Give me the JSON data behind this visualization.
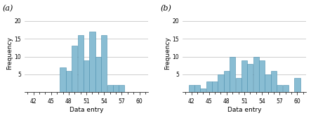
{
  "title_a": "(a)",
  "title_b": "(b)",
  "xlabel": "Data entry",
  "ylabel": "Frequency",
  "bar_color": "#89bdd3",
  "bar_edgecolor": "#4a8fad",
  "xlim": [
    40.5,
    61.5
  ],
  "ylim": [
    0,
    22
  ],
  "xticks": [
    42,
    45,
    48,
    51,
    54,
    57,
    60
  ],
  "yticks": [
    5,
    10,
    15,
    20
  ],
  "hist_a": {
    "centers": [
      47,
      48,
      49,
      50,
      51,
      52,
      53,
      54,
      55,
      56,
      57
    ],
    "heights": [
      7,
      6,
      13,
      16,
      9,
      17,
      10,
      16,
      2,
      2,
      2
    ]
  },
  "hist_b": {
    "centers": [
      42,
      43,
      44,
      45,
      46,
      47,
      48,
      49,
      50,
      51,
      52,
      53,
      54,
      55,
      56,
      57,
      58,
      60
    ],
    "heights": [
      2,
      2,
      1,
      3,
      3,
      5,
      6,
      10,
      4,
      9,
      8,
      10,
      9,
      5,
      6,
      2,
      2,
      4
    ]
  }
}
